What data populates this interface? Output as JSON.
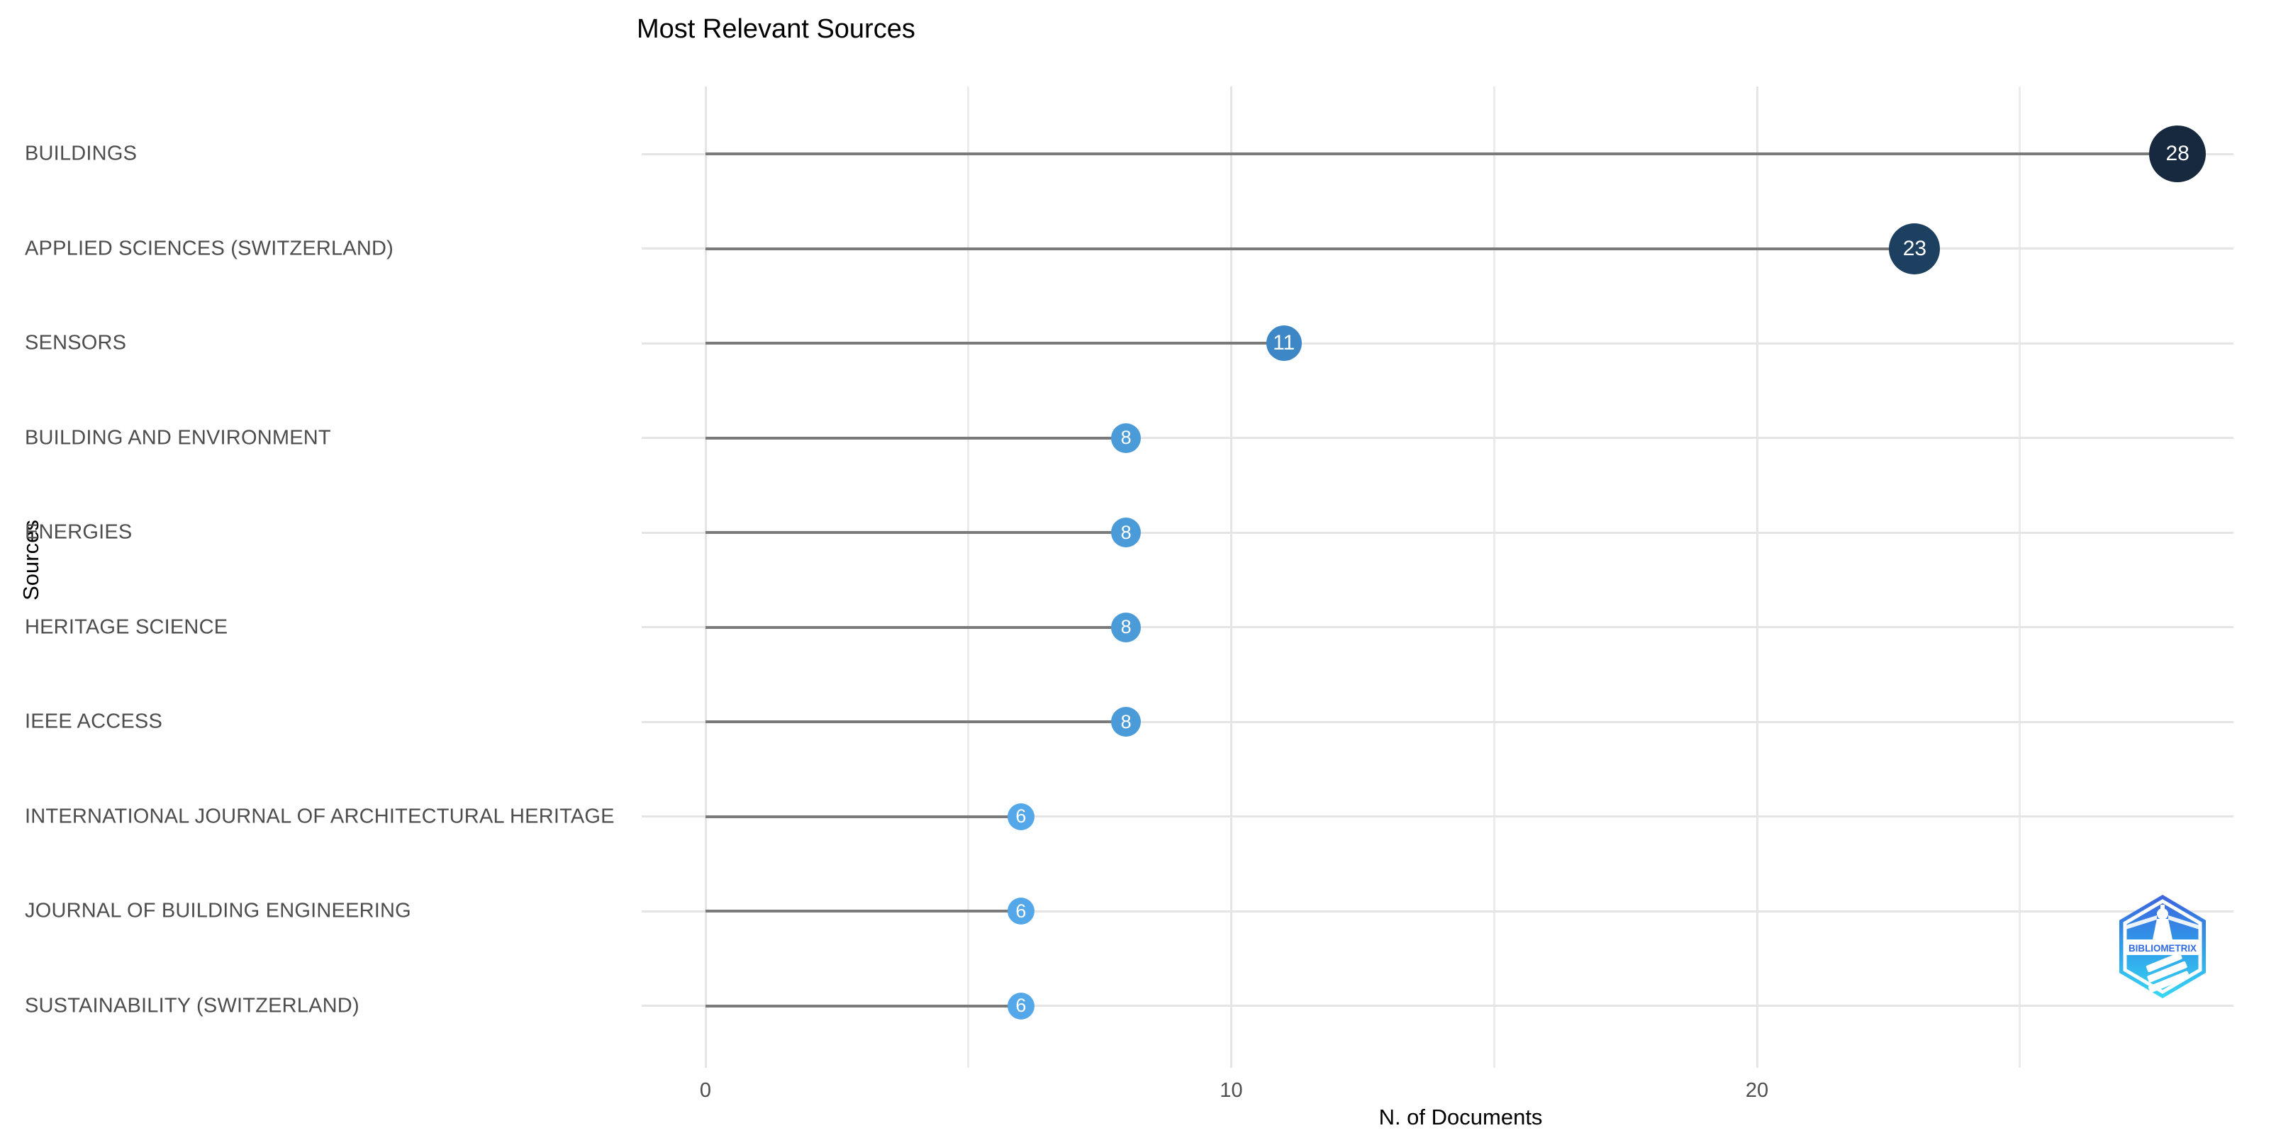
{
  "chart_data": {
    "type": "bar",
    "variant": "horizontal-lollipop",
    "title": "Most Relevant Sources",
    "xlabel": "N. of Documents",
    "ylabel": "Sources",
    "categories": [
      "BUILDINGS",
      "APPLIED SCIENCES (SWITZERLAND)",
      "SENSORS",
      "BUILDING AND ENVIRONMENT",
      "ENERGIES",
      "HERITAGE SCIENCE",
      "IEEE ACCESS",
      "INTERNATIONAL JOURNAL OF ARCHITECTURAL HERITAGE",
      "JOURNAL OF BUILDING ENGINEERING",
      "SUSTAINABILITY (SWITZERLAND)"
    ],
    "values": [
      28,
      23,
      11,
      8,
      8,
      8,
      8,
      6,
      6,
      6
    ],
    "point_colors": [
      "#16293f",
      "#1e4060",
      "#3d87c7",
      "#4c9bd9",
      "#4c9bd9",
      "#4c9bd9",
      "#4c9bd9",
      "#54a7e9",
      "#54a7e9",
      "#54a7e9"
    ],
    "x_ticks_major": [
      0,
      10,
      20
    ],
    "x_ticks_minor": [
      5,
      15,
      25
    ],
    "xlim": [
      -1.2,
      29
    ],
    "grid": true,
    "legend": "none",
    "colors": {
      "stem": "#7a7a7a",
      "gridline_major": "#e5e5e5",
      "gridline_minor": "#ececec",
      "category_text": "#4d4d4d",
      "tick_text": "#4d4d4d",
      "value_text": "#ffffff",
      "title_text": "#000000"
    }
  },
  "branding": {
    "logo_text": "BIBLIOMETRIX",
    "logo_colors": {
      "hex_top": "#3f63dd",
      "hex_mid": "#2f9ce9",
      "hex_bottom": "#38d9f4",
      "band_text": "#2f6ae0",
      "shapes": "#ffffff"
    }
  }
}
